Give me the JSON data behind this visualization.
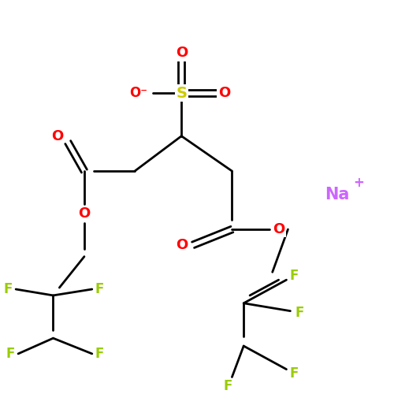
{
  "background": "#ffffff",
  "bond_color": "#000000",
  "bond_width": 2.0,
  "atom_colors": {
    "O": "#ff0000",
    "S": "#cccc00",
    "F": "#99cc00",
    "Na": "#cc66ff"
  },
  "figsize": [
    5.0,
    5.0
  ],
  "dpi": 100
}
